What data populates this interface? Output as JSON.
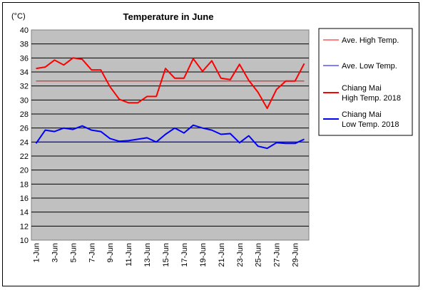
{
  "chart_data": {
    "type": "line",
    "title": "Temperature in June",
    "unit_label": "(°C)",
    "ylim": [
      10,
      40
    ],
    "y_ticks": [
      "10",
      "12",
      "14",
      "16",
      "18",
      "20",
      "22",
      "24",
      "26",
      "28",
      "30",
      "32",
      "34",
      "36",
      "38",
      "40"
    ],
    "x_ticks": [
      "1-Jun",
      "3-Jun",
      "5-Jun",
      "7-Jun",
      "9-Jun",
      "11-Jun",
      "13-Jun",
      "15-Jun",
      "17-Jun",
      "19-Jun",
      "21-Jun",
      "23-Jun",
      "25-Jun",
      "27-Jun",
      "29-Jun"
    ],
    "x": [
      1,
      2,
      3,
      4,
      5,
      6,
      7,
      8,
      9,
      10,
      11,
      12,
      13,
      14,
      15,
      16,
      17,
      18,
      19,
      20,
      21,
      22,
      23,
      24,
      25,
      26,
      27,
      28,
      29,
      30
    ],
    "grid": true,
    "legend_position": "right",
    "series": [
      {
        "name": "Ave. High Temp.",
        "color": "#ff0000",
        "width": 1,
        "values": [
          32.7,
          32.7,
          32.7,
          32.7,
          32.7,
          32.7,
          32.7,
          32.7,
          32.7,
          32.7,
          32.7,
          32.7,
          32.7,
          32.7,
          32.7,
          32.7,
          32.7,
          32.7,
          32.7,
          32.7,
          32.7,
          32.7,
          32.7,
          32.7,
          32.7,
          32.7,
          32.7,
          32.7,
          32.7,
          32.7
        ]
      },
      {
        "name": "Ave. Low Temp.",
        "color": "#0000ff",
        "width": 1,
        "values": [
          24.0,
          24.0,
          24.0,
          24.0,
          24.0,
          24.0,
          24.0,
          24.0,
          24.0,
          24.0,
          24.0,
          24.0,
          24.0,
          24.0,
          24.0,
          24.0,
          24.0,
          24.0,
          24.0,
          24.0,
          24.0,
          24.0,
          24.0,
          24.0,
          24.0,
          24.0,
          24.0,
          24.0,
          24.0,
          24.0
        ]
      },
      {
        "name": "Chiang Mai High Temp. 2018",
        "name_lines": [
          "Chiang Mai",
          "High Temp. 2018"
        ],
        "color": "#ff0000",
        "width": 2,
        "values": [
          34.5,
          34.7,
          35.7,
          35.0,
          36.0,
          35.8,
          34.3,
          34.3,
          31.9,
          30.1,
          29.6,
          29.6,
          30.5,
          30.5,
          34.5,
          33.1,
          33.1,
          35.9,
          34.1,
          35.6,
          33.1,
          32.9,
          35.1,
          32.8,
          31.1,
          28.8,
          31.5,
          32.7,
          32.7,
          35.2
        ]
      },
      {
        "name": "Chiang Mai Low Temp. 2018",
        "name_lines": [
          "Chiang Mai",
          "Low Temp. 2018"
        ],
        "color": "#0000ff",
        "width": 2,
        "values": [
          23.8,
          25.7,
          25.5,
          26.0,
          25.8,
          26.3,
          25.7,
          25.5,
          24.5,
          24.1,
          24.2,
          24.4,
          24.6,
          24.0,
          25.1,
          26.0,
          25.3,
          26.4,
          26.0,
          25.7,
          25.1,
          25.2,
          23.9,
          24.9,
          23.4,
          23.1,
          23.9,
          23.8,
          23.8,
          24.4
        ]
      }
    ]
  }
}
